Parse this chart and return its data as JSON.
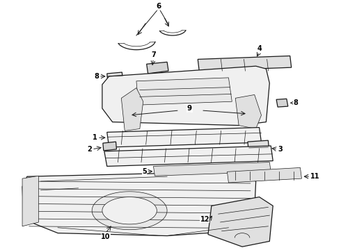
{
  "bg_color": "#ffffff",
  "line_color": "#1a1a1a",
  "fig_width": 4.9,
  "fig_height": 3.6,
  "dpi": 100,
  "label_fontsize": 7,
  "lw_main": 0.9,
  "lw_thin": 0.5,
  "part_fill": "#f0f0f0",
  "part_fill2": "#e0e0e0",
  "part_fill3": "#d4d4d4"
}
